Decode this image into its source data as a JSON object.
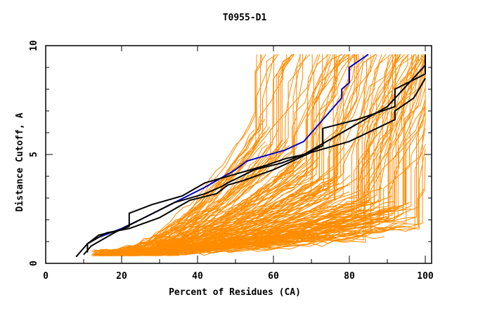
{
  "chart_data": {
    "type": "line",
    "title": "T0955-D1",
    "xlabel": "Percent of Residues (CA)",
    "ylabel": "Distance Cutoff, A",
    "xlim": [
      0,
      100
    ],
    "ylim": [
      0,
      10
    ],
    "x_ticks": [
      0,
      20,
      40,
      60,
      80,
      100
    ],
    "x_tick_labels": [
      "0",
      "20",
      "40",
      "60",
      "80",
      "100"
    ],
    "y_ticks": [
      0,
      5,
      10
    ],
    "y_tick_labels": [
      "0",
      "5",
      "10"
    ],
    "x_minor_step": 10,
    "y_minor_step": 1,
    "grid": false,
    "colors": {
      "background_models": "#ff8c00",
      "highlight_blue": "#0000cc",
      "highlight_black": "#000000",
      "axes": "#000000"
    },
    "background_models": {
      "description_count": 180,
      "max_distance": 9.6,
      "start_distance": 0.35
    },
    "series": [
      {
        "name": "blue-model",
        "color": "#0000cc",
        "x": [
          11,
          14,
          20,
          26,
          34,
          42,
          50,
          53,
          63,
          68,
          72,
          78,
          78,
          80,
          80,
          85
        ],
        "y": [
          0.9,
          1.2,
          1.6,
          2.1,
          2.8,
          3.5,
          4.3,
          4.7,
          5.2,
          5.6,
          6.4,
          7.6,
          8.0,
          8.3,
          9.0,
          9.6
        ]
      },
      {
        "name": "black-model-1",
        "color": "#000000",
        "x": [
          8,
          11,
          14,
          19,
          22,
          22,
          28,
          36,
          42,
          50,
          58,
          63,
          68,
          73,
          73,
          82,
          92,
          92,
          100,
          100
        ],
        "y": [
          0.3,
          0.9,
          1.3,
          1.5,
          1.7,
          2.3,
          2.7,
          3.1,
          3.7,
          4.1,
          4.5,
          4.8,
          5.0,
          5.4,
          6.2,
          6.6,
          7.2,
          8.0,
          8.7,
          9.6
        ]
      },
      {
        "name": "black-model-2",
        "color": "#000000",
        "x": [
          10,
          12,
          18,
          26,
          34,
          42,
          46,
          48,
          55,
          62,
          68,
          75,
          84,
          90,
          100
        ],
        "y": [
          0.4,
          0.8,
          1.4,
          2.1,
          2.8,
          3.2,
          3.5,
          3.7,
          4.3,
          4.6,
          5.0,
          5.7,
          6.6,
          7.2,
          9.1
        ]
      },
      {
        "name": "black-model-3",
        "color": "#000000",
        "x": [
          11,
          11,
          16,
          22,
          30,
          38,
          45,
          48,
          52,
          60,
          70,
          80,
          92,
          92,
          97,
          100
        ],
        "y": [
          0.5,
          0.9,
          1.4,
          1.6,
          2.1,
          2.9,
          3.2,
          3.6,
          3.8,
          4.3,
          5.1,
          5.6,
          6.6,
          7.0,
          7.6,
          8.5
        ]
      }
    ]
  }
}
